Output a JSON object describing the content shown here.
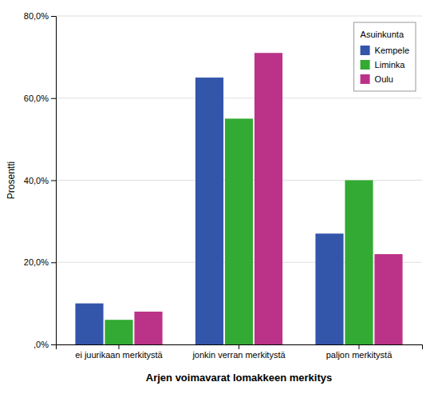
{
  "chart_data": {
    "type": "bar",
    "categories": [
      "ei juurikaan merkitystä",
      "jonkin verran merkitystä",
      "paljon merkitystä"
    ],
    "series": [
      {
        "name": "Kempele",
        "color": "#3355AA",
        "values": [
          10.0,
          65.0,
          27.0
        ]
      },
      {
        "name": "Liminka",
        "color": "#33AA33",
        "values": [
          6.0,
          55.0,
          40.0
        ]
      },
      {
        "name": "Oulu",
        "color": "#BB3388",
        "values": [
          8.0,
          71.0,
          22.0
        ]
      }
    ],
    "xlabel": "Arjen voimavarat lomakkeen merkitys",
    "ylabel": "Prosentti",
    "legend_title": "Asuinkunta",
    "ylim": [
      0,
      80
    ],
    "yticks": [
      {
        "value": 0,
        "label": ",0%"
      },
      {
        "value": 20,
        "label": "20,0%"
      },
      {
        "value": 40,
        "label": "40,0%"
      },
      {
        "value": 60,
        "label": "60,0%"
      },
      {
        "value": 80,
        "label": "80,0%"
      }
    ],
    "grid": true,
    "legend": "upper right"
  }
}
